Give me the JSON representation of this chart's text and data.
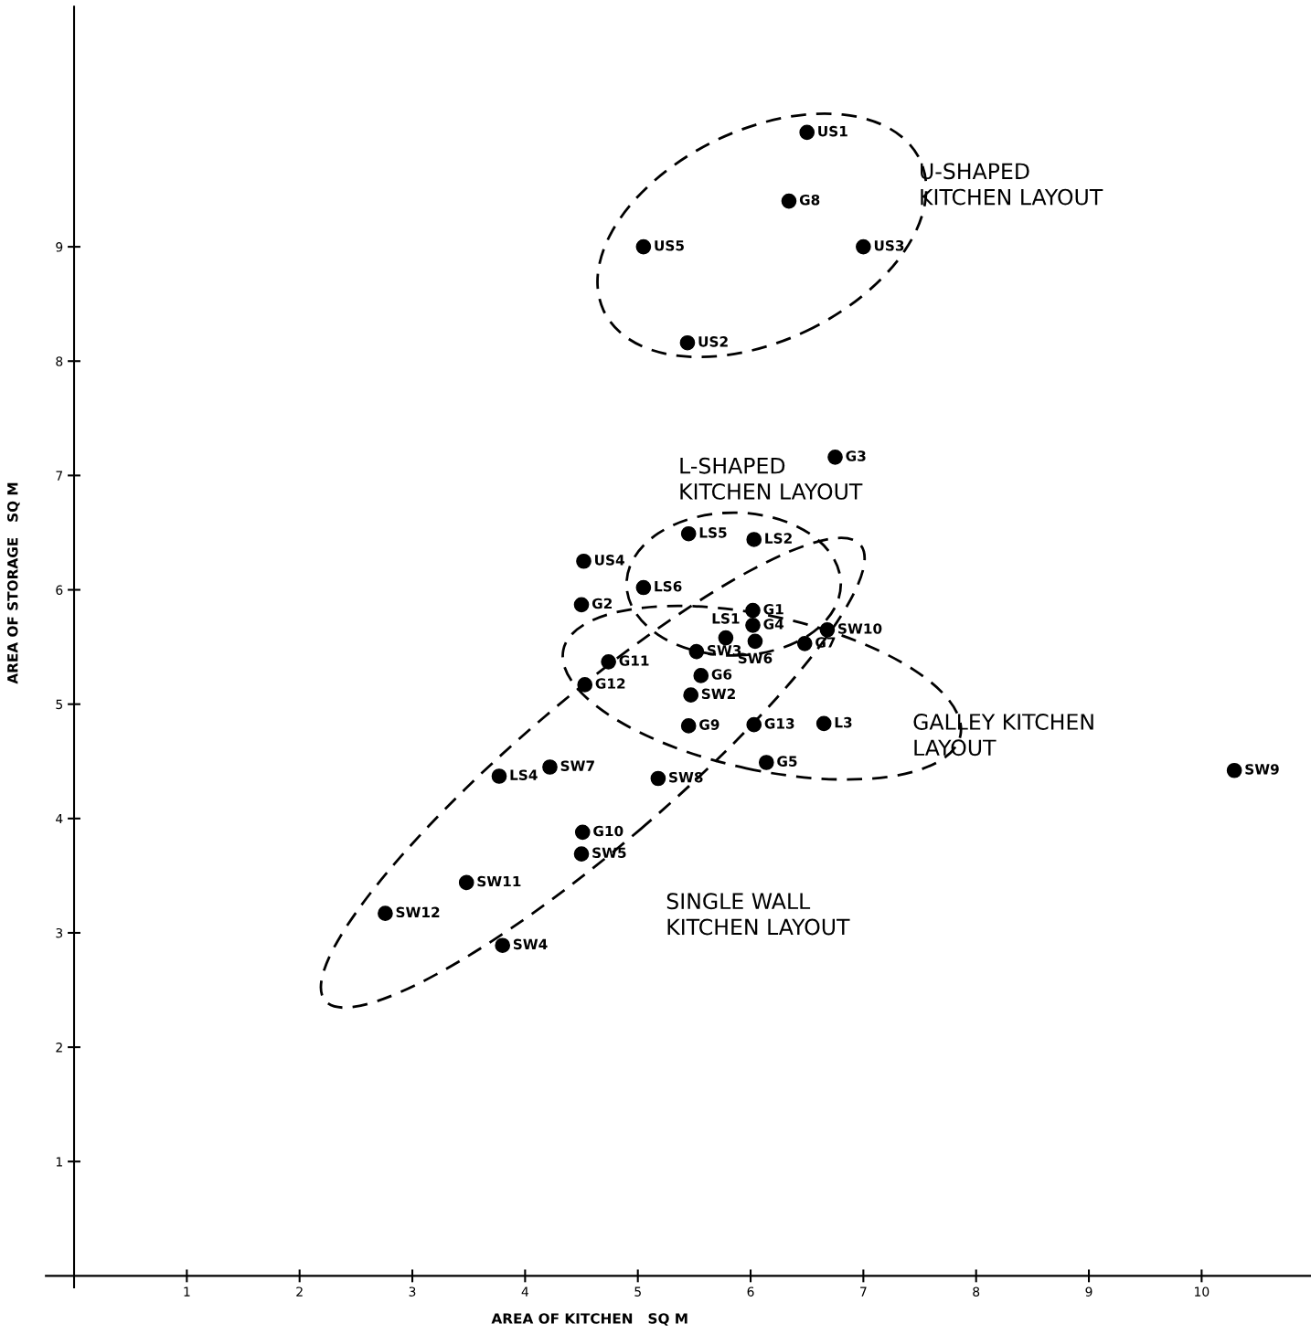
{
  "chart_data": {
    "type": "scatter",
    "xlabel": "AREA OF KITCHEN   SQ M",
    "ylabel": "AREA OF STORAGE   SQ M",
    "xlim": [
      -0.25,
      10.97
    ],
    "ylim": [
      -0.1,
      11.1
    ],
    "xticks": [
      1,
      2,
      3,
      4,
      5,
      6,
      7,
      8,
      9,
      10
    ],
    "yticks": [
      1,
      2,
      3,
      4,
      5,
      6,
      7,
      8,
      9
    ],
    "grid": false,
    "legend": false,
    "marker": "circle",
    "series": [
      {
        "color": "#000000",
        "x": [
          6.5,
          5.05,
          7.0,
          5.44,
          4.52,
          6.34,
          6.75,
          4.5,
          6.02,
          6.02,
          6.48,
          4.74,
          5.56,
          4.53,
          5.45,
          6.03,
          6.14,
          4.51
        ],
        "values": [
          10.0,
          9.0,
          9.0,
          8.16,
          6.25,
          9.4,
          7.16,
          5.87,
          5.82,
          5.69,
          5.53,
          5.37,
          5.25,
          5.17,
          4.81,
          4.82,
          4.49,
          3.88
        ],
        "value_labels": [
          "US1",
          "US5",
          "US3",
          "US2",
          "US4",
          "G8",
          "G3",
          "G2",
          "G1",
          "G4",
          "G7",
          "G11",
          "G6",
          "G12",
          "G9",
          "G13",
          "G5",
          "G10"
        ]
      },
      {
        "color": "#000000",
        "x": [
          6.68,
          6.04,
          5.52,
          5.47,
          10.29,
          4.22,
          5.18,
          4.5,
          3.48,
          2.76,
          3.8
        ],
        "values": [
          5.65,
          5.55,
          5.46,
          5.08,
          4.42,
          4.45,
          4.35,
          3.69,
          3.44,
          3.17,
          2.89
        ],
        "value_labels": [
          "SW10",
          "SW6",
          "SW3",
          "SW2",
          "SW9",
          "SW7",
          "SW8",
          "SW5",
          "SW11",
          "SW12",
          "SW4"
        ]
      },
      {
        "color": "#000000",
        "x": [
          5.45,
          6.03,
          5.05,
          5.78,
          6.65,
          3.77
        ],
        "values": [
          6.49,
          6.44,
          6.02,
          5.58,
          4.83,
          4.37
        ],
        "value_labels": [
          "LS5",
          "LS2",
          "LS6",
          "LS1",
          "L3",
          "LS4"
        ]
      }
    ],
    "annotations": [
      "U-SHAPED\nKITCHEN LAYOUT",
      "L-SHAPED\nKITCHEN LAYOUT",
      "GALLEY KITCHEN\nLAYOUT",
      "SINGLE WALL\nKITCHEN LAYOUT"
    ]
  }
}
